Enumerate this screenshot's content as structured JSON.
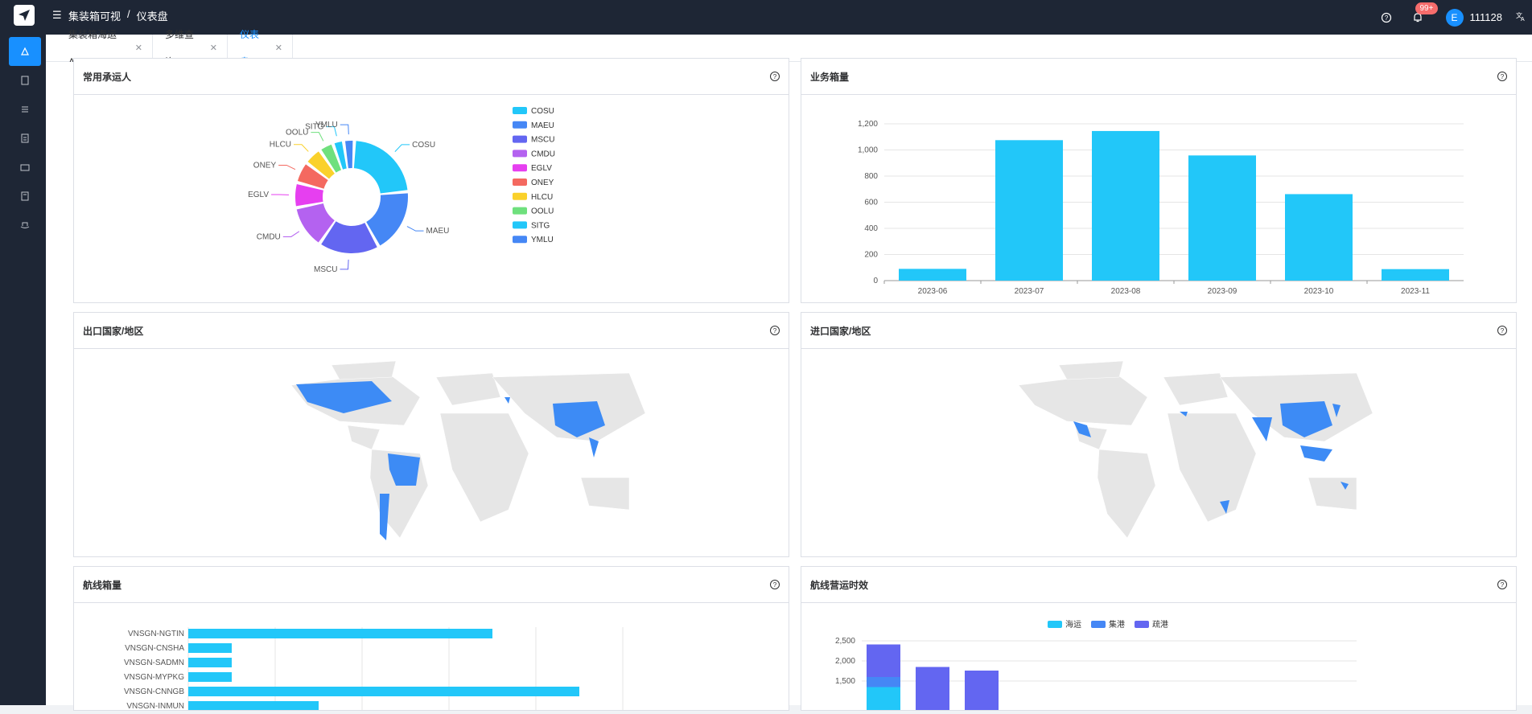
{
  "header": {
    "breadcrumb": [
      "集装箱可视",
      "仪表盘"
    ],
    "sep": "/",
    "notification_badge": "99+",
    "user_initial": "E",
    "username": "111128"
  },
  "tabs": [
    {
      "label": "集装箱海运API",
      "active": false
    },
    {
      "label": "多维查询",
      "active": false
    },
    {
      "label": "仪表盘",
      "active": true
    }
  ],
  "cards": {
    "carriers": "常用承运人",
    "volume": "业务箱量",
    "export": "出口国家/地区",
    "import": "进口国家/地区",
    "route_volume": "航线箱量",
    "route_time": "航线营运时效"
  },
  "colors": {
    "accent": "#1890ff",
    "cyan": "#22c7f9",
    "blue": "#4587f5",
    "indigo": "#6366f1"
  },
  "chart_data": [
    {
      "type": "pie",
      "labels": [
        "COSU",
        "MAEU",
        "MSCU",
        "CMDU",
        "EGLV",
        "ONEY",
        "HLCU",
        "OOLU",
        "SITG",
        "YMLU"
      ],
      "values": [
        22,
        18,
        17,
        12,
        7,
        6,
        5,
        4,
        3,
        3
      ],
      "colors": [
        "#22c7f9",
        "#4587f5",
        "#6366f1",
        "#b462f0",
        "#e63ff0",
        "#f46960",
        "#fad12b",
        "#6fe07d",
        "#22c7f9",
        "#4587f5"
      ],
      "legend": "right"
    },
    {
      "type": "bar",
      "categories": [
        "2023-06",
        "2023-07",
        "2023-08",
        "2023-09",
        "2023-10",
        "2023-11"
      ],
      "values": [
        90,
        1075,
        1145,
        958,
        662,
        88
      ],
      "ylim": [
        0,
        1200
      ],
      "yticks": [
        "0",
        "200",
        "400",
        "600",
        "800",
        "1,000",
        "1,200"
      ]
    },
    {
      "type": "bar",
      "orientation": "horizontal",
      "categories": [
        "VNSGN-NGTIN",
        "VNSGN-CNSHA",
        "VNSGN-SADMN",
        "VNSGN-MYPKG",
        "VNSGN-CNNGB",
        "VNSGN-INMUN"
      ],
      "values": [
        350,
        50,
        50,
        50,
        450,
        150
      ]
    },
    {
      "type": "bar",
      "stacked": true,
      "legend_items": [
        "海运",
        "集港",
        "疏港"
      ],
      "legend_colors": [
        "#22c7f9",
        "#4587f5",
        "#6366f1"
      ],
      "yticks": [
        "1,500",
        "2,000",
        "2,500"
      ],
      "stacks": [
        [
          1350,
          250,
          810
        ],
        [
          0,
          0,
          1850
        ],
        [
          0,
          0,
          1760
        ]
      ]
    }
  ]
}
